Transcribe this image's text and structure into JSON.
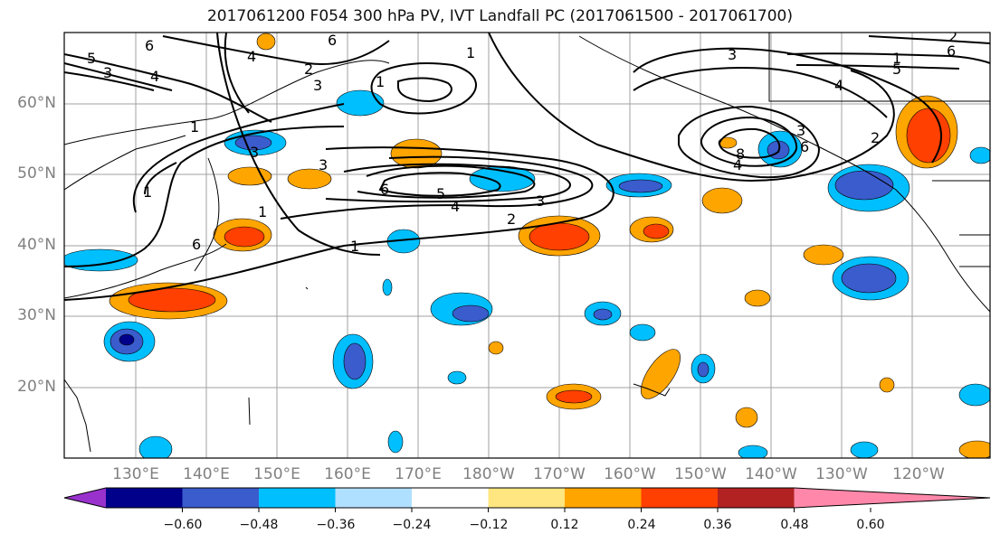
{
  "title": "2017061200 F054 300 hPa PV, IVT Landfall PC (2017061500 - 2017061700)",
  "lat_labels": [
    "60°N",
    "50°N",
    "40°N",
    "30°N",
    "20°N"
  ],
  "lon_labels": [
    "130°E",
    "140°E",
    "150°E",
    "160°E",
    "170°E",
    "180°W",
    "170°W",
    "160°W",
    "150°W",
    "140°W",
    "130°W",
    "120°W"
  ],
  "contour_labels": [
    "6",
    "6",
    "5",
    "3",
    "4",
    "3",
    "1",
    "1",
    "4",
    "2",
    "1",
    "3",
    "1",
    "6",
    "5",
    "4",
    "3",
    "2",
    "1",
    "3",
    "1",
    "6",
    "3",
    "4",
    "2",
    "1",
    "6",
    "5",
    "3",
    "4",
    "6",
    "2",
    "8"
  ],
  "colorbar": {
    "colors": [
      "#9932cc",
      "#00008b",
      "#3a5ccc",
      "#00bfff",
      "#b0e0ff",
      "#ffffff",
      "#ffe680",
      "#ffa500",
      "#ff4000",
      "#b22222",
      "#ff88aa"
    ],
    "tick_labels": [
      "−0.60",
      "−0.48",
      "−0.36",
      "−0.24",
      "−0.12",
      "0.12",
      "0.24",
      "0.36",
      "0.48",
      "0.60"
    ]
  },
  "colors": {
    "contour": "#000000",
    "grid": "#a0a0a0",
    "axis_text": "#808080"
  }
}
